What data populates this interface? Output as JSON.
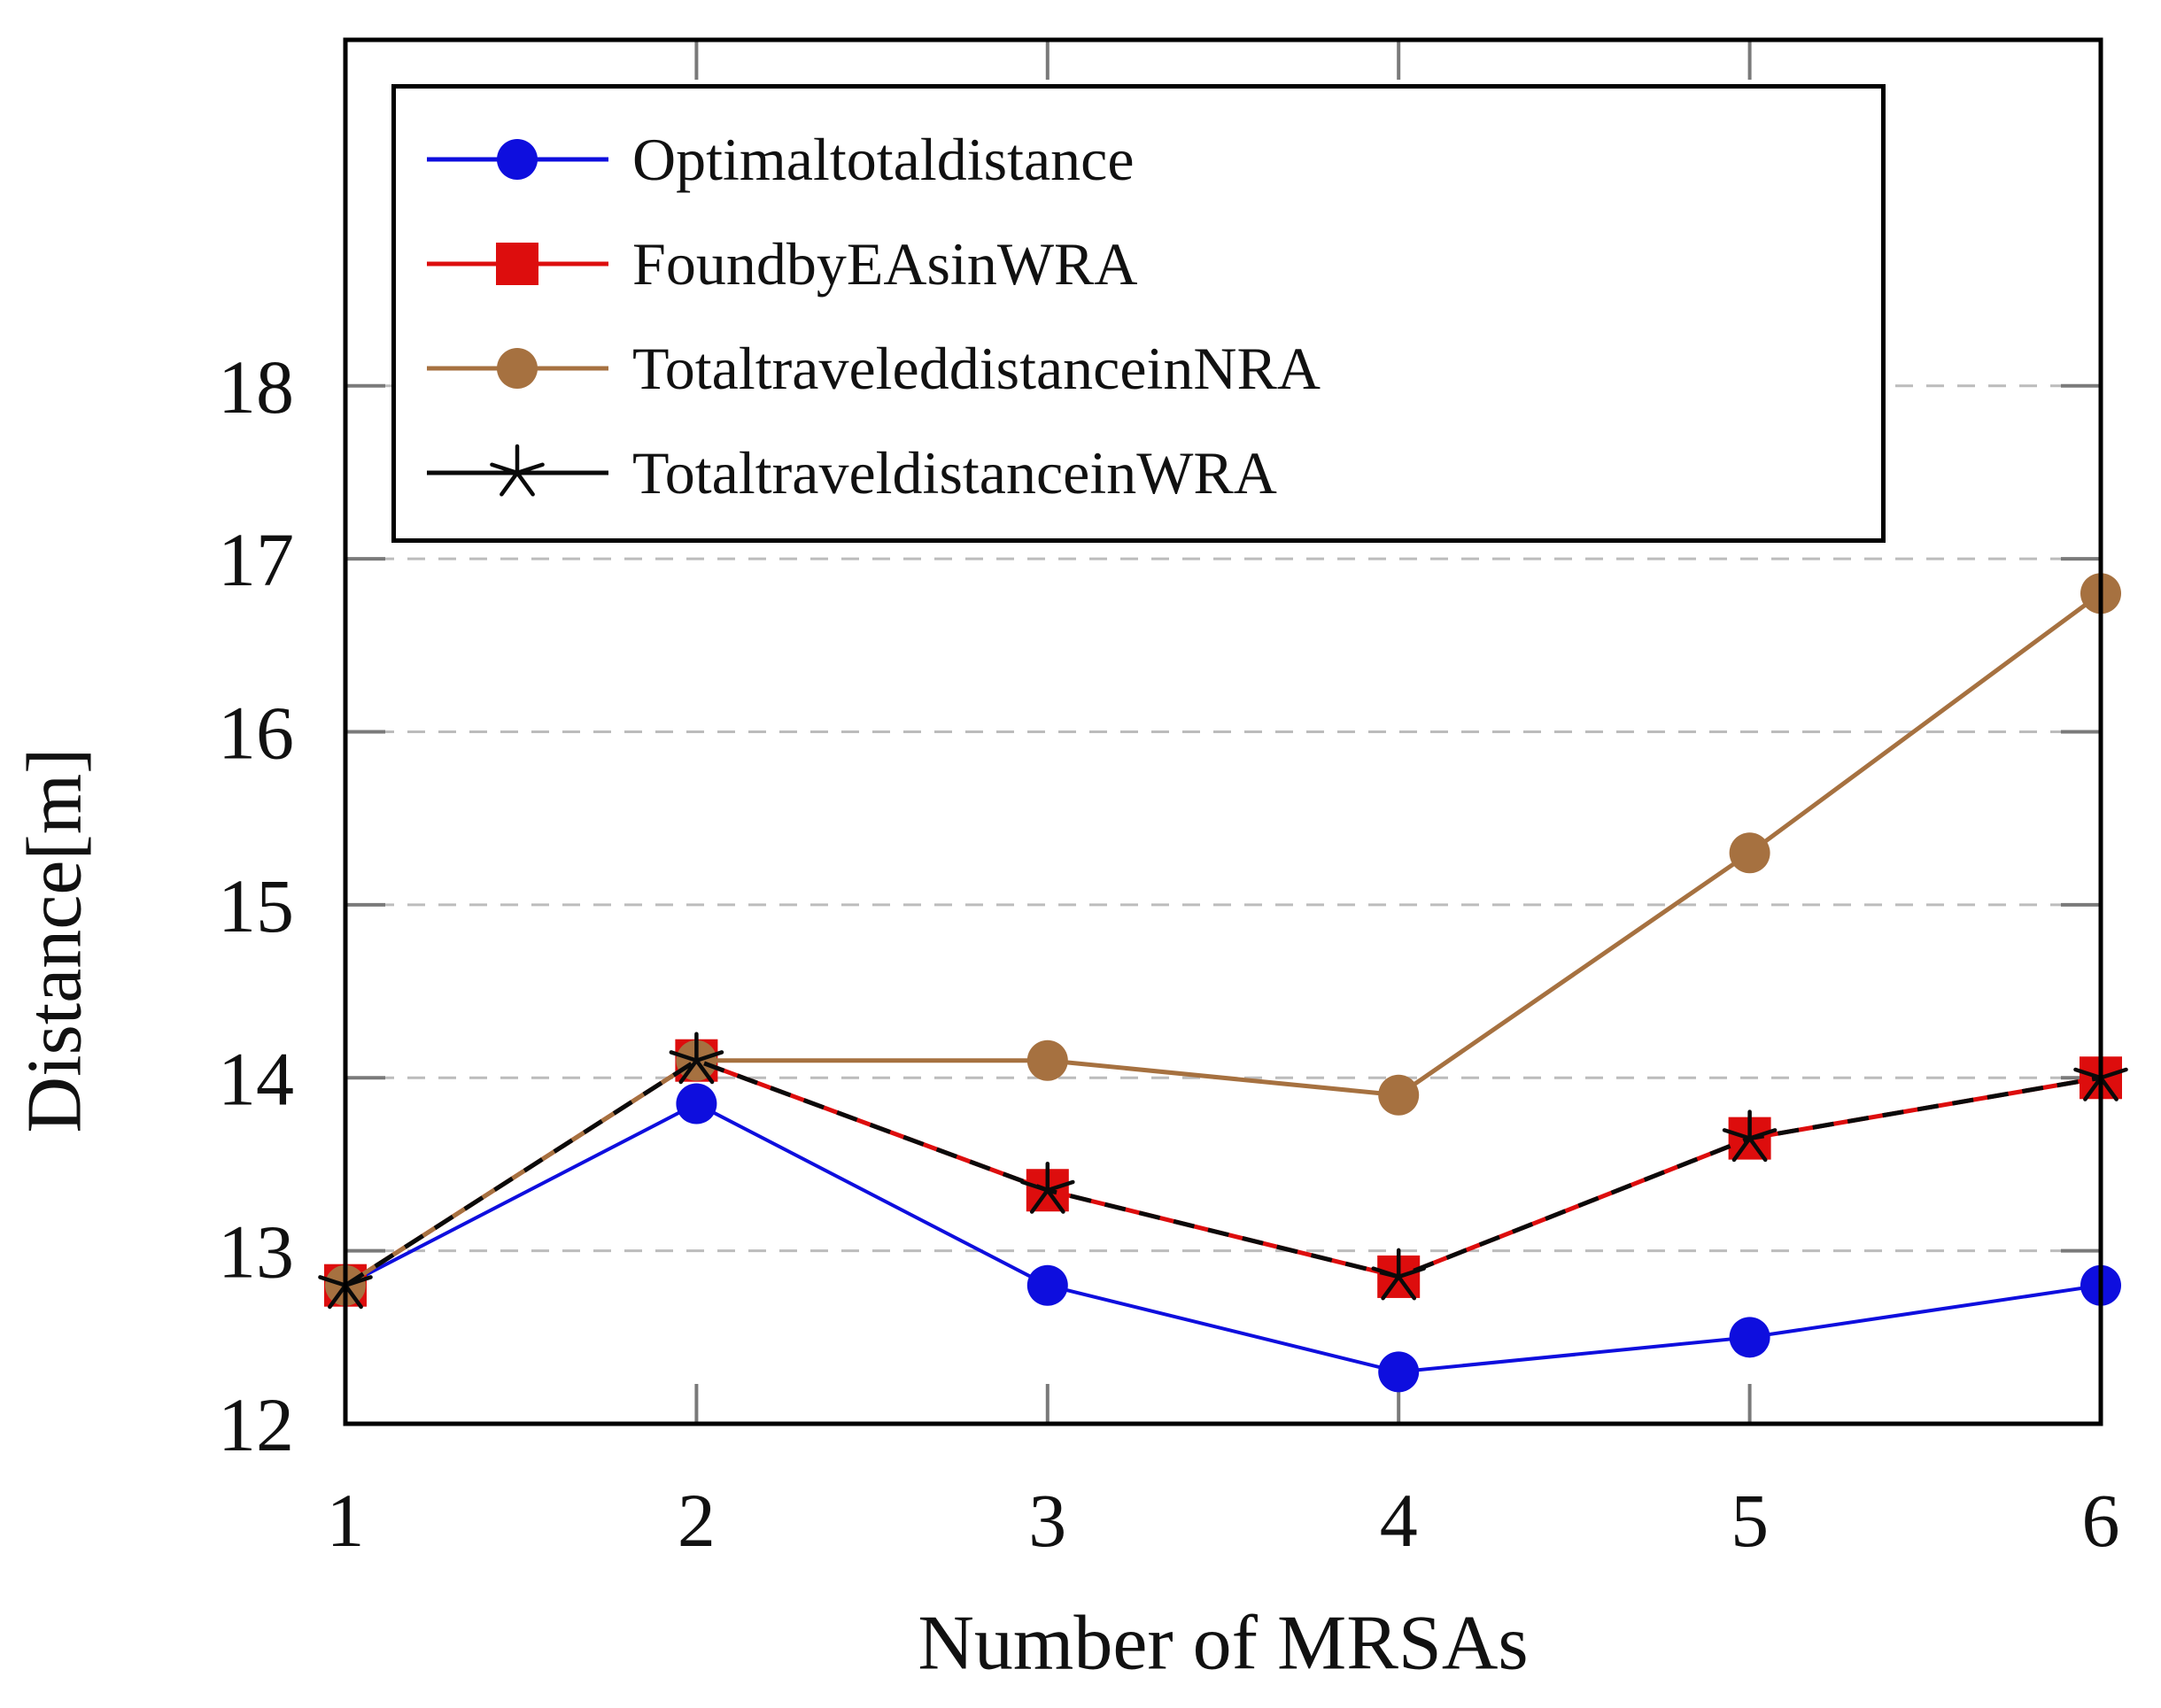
{
  "chart_data": {
    "type": "line",
    "title": "",
    "xlabel": "Number of MRSAs",
    "ylabel": "Distance[m]",
    "x": [
      1,
      2,
      3,
      4,
      5,
      6
    ],
    "xticks": [
      1,
      2,
      3,
      4,
      5,
      6
    ],
    "yticks": [
      12,
      13,
      14,
      15,
      16,
      17,
      18
    ],
    "xlim": [
      1,
      6
    ],
    "ylim": [
      12,
      20
    ],
    "grid": "horizontal-dashed",
    "legend_position": "top-left",
    "colors": {
      "axis": "#000000",
      "grid": "#bcbcbc",
      "tick": "#7a7a7a",
      "background": "#ffffff"
    },
    "series": [
      {
        "name": "Optimaltotaldistance",
        "color": "#0e0ede",
        "marker": "circle",
        "values": [
          12.8,
          13.85,
          12.8,
          12.3,
          12.5,
          12.8
        ]
      },
      {
        "name": "FoundbyEAsinWRA",
        "color": "#dd0d0d",
        "marker": "square",
        "values": [
          12.8,
          14.1,
          13.35,
          12.85,
          13.65,
          14.0
        ]
      },
      {
        "name": "TotaltraveleddistanceinNRA",
        "color": "#a67140",
        "marker": "circle",
        "values": [
          12.8,
          14.1,
          14.1,
          13.9,
          15.3,
          16.8
        ]
      },
      {
        "name": "TotaltraveldistanceinWRA",
        "color": "#0a0a0a",
        "marker": "star",
        "line_style": "dashed-overlay",
        "values": [
          12.8,
          14.1,
          13.35,
          12.85,
          13.65,
          14.0
        ]
      }
    ]
  }
}
